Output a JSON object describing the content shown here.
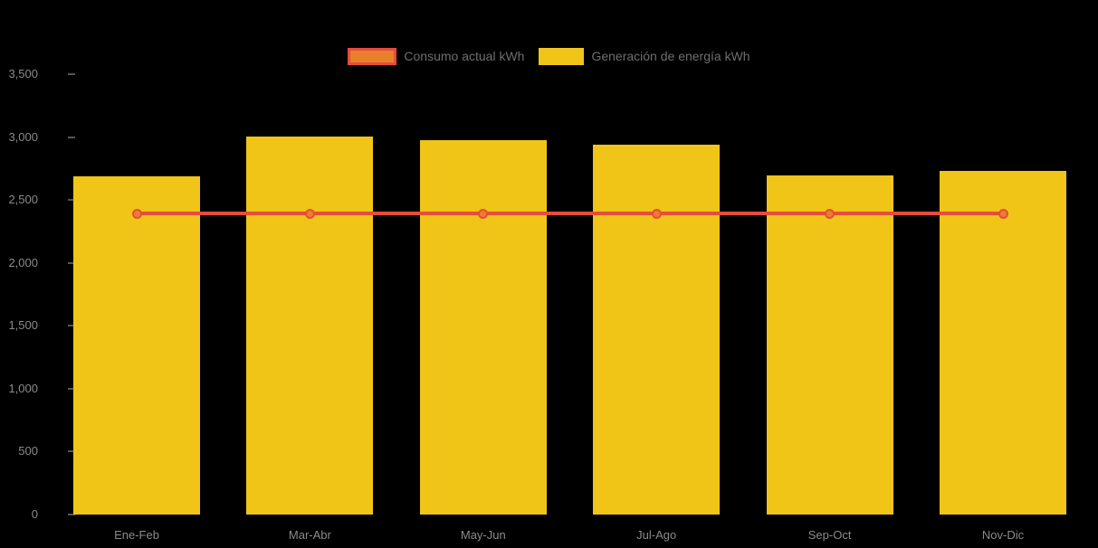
{
  "legend": {
    "items": [
      {
        "label": "Consumo actual kWh",
        "swatch": "line-swatch"
      },
      {
        "label": "Generación de energía kWh",
        "swatch": "bar-swatch"
      }
    ]
  },
  "colors": {
    "background": "#000000",
    "bar_yellow": "#f0c517",
    "line_red": "#e74c3c",
    "point_orange": "#e8802b",
    "axis_text": "#8a8a8a",
    "legend_text": "#6e6e6e",
    "tick_mark": "#555555"
  },
  "chart_data": {
    "type": "bar",
    "combo": "bar + line",
    "title": "",
    "xlabel": "",
    "ylabel": "",
    "categories": [
      "Ene-Feb",
      "Mar-Abr",
      "May-Jun",
      "Jul-Ago",
      "Sep-Oct",
      "Nov-Dic"
    ],
    "series": [
      {
        "name": "Consumo actual kWh",
        "type": "line",
        "values": [
          2390,
          2390,
          2390,
          2390,
          2390,
          2390
        ],
        "line_color": "#e74c3c",
        "point_fill": "#e8802b"
      },
      {
        "name": "Generación de energía kWh",
        "type": "bar",
        "values": [
          2690,
          3005,
          2975,
          2940,
          2695,
          2730
        ],
        "color": "#f0c517"
      }
    ],
    "ylim": [
      0,
      3500
    ],
    "yticks": [
      0,
      500,
      1000,
      1500,
      2000,
      2500,
      3000,
      3500
    ],
    "ytick_labels": [
      "0",
      "500",
      "1,000",
      "1,500",
      "2,000",
      "2,500",
      "3,000",
      "3,500"
    ],
    "legend_position": "top-center",
    "grid": false
  }
}
